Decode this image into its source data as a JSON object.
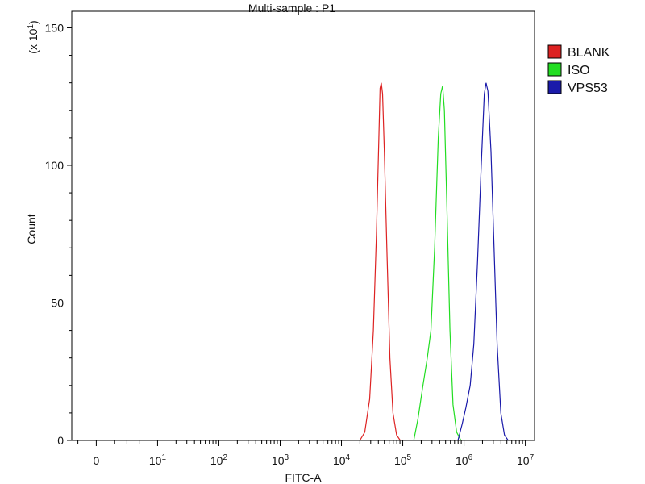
{
  "chart_data": {
    "type": "line",
    "title": "Multi-sample : P1",
    "xlabel": "FITC-A",
    "ylabel": "Count",
    "y_multiplier_label": {
      "base": "(x 10",
      "exp": "1",
      "close": ")"
    },
    "xscale": "biexponential (log above 10^1)",
    "xlim_decades": [
      -0.4,
      7.15
    ],
    "ylim": [
      0,
      15.6
    ],
    "y_ticks": [
      0,
      50,
      100,
      150
    ],
    "y_tick_values": [
      0,
      5,
      10,
      15
    ],
    "x_ticks": [
      {
        "value": 0,
        "base": "0",
        "exp": ""
      },
      {
        "value": 1,
        "base": "10",
        "exp": "1"
      },
      {
        "value": 2,
        "base": "10",
        "exp": "2"
      },
      {
        "value": 3,
        "base": "10",
        "exp": "3"
      },
      {
        "value": 4,
        "base": "10",
        "exp": "4"
      },
      {
        "value": 5,
        "base": "10",
        "exp": "5"
      },
      {
        "value": 6,
        "base": "10",
        "exp": "6"
      },
      {
        "value": 7,
        "base": "10",
        "exp": "7"
      }
    ],
    "legend_position": "right",
    "grid": false,
    "series": [
      {
        "name": "BLANK",
        "color": "#dd2222",
        "points": [
          [
            4.3,
            0
          ],
          [
            4.38,
            0.3
          ],
          [
            4.46,
            1.5
          ],
          [
            4.52,
            4
          ],
          [
            4.57,
            7.5
          ],
          [
            4.61,
            11.0
          ],
          [
            4.63,
            12.8
          ],
          [
            4.65,
            13.0
          ],
          [
            4.67,
            12.6
          ],
          [
            4.7,
            10.5
          ],
          [
            4.74,
            7.0
          ],
          [
            4.79,
            3.0
          ],
          [
            4.84,
            1.0
          ],
          [
            4.9,
            0.2
          ],
          [
            4.96,
            0
          ]
        ]
      },
      {
        "name": "ISO",
        "color": "#22dd22",
        "points": [
          [
            5.18,
            0
          ],
          [
            5.25,
            0.8
          ],
          [
            5.33,
            2.0
          ],
          [
            5.4,
            3.0
          ],
          [
            5.46,
            4.0
          ],
          [
            5.52,
            7.0
          ],
          [
            5.58,
            11.0
          ],
          [
            5.62,
            12.6
          ],
          [
            5.65,
            12.9
          ],
          [
            5.68,
            12.0
          ],
          [
            5.72,
            8.5
          ],
          [
            5.77,
            4.0
          ],
          [
            5.82,
            1.3
          ],
          [
            5.88,
            0.3
          ],
          [
            5.95,
            0
          ]
        ]
      },
      {
        "name": "VPS53",
        "color": "#1a1aaa",
        "points": [
          [
            5.9,
            0
          ],
          [
            5.97,
            0.6
          ],
          [
            6.03,
            1.2
          ],
          [
            6.1,
            2.0
          ],
          [
            6.16,
            3.5
          ],
          [
            6.22,
            6.5
          ],
          [
            6.28,
            10.0
          ],
          [
            6.33,
            12.6
          ],
          [
            6.36,
            13.0
          ],
          [
            6.39,
            12.7
          ],
          [
            6.44,
            10.5
          ],
          [
            6.49,
            7.0
          ],
          [
            6.54,
            3.5
          ],
          [
            6.6,
            1.0
          ],
          [
            6.66,
            0.2
          ],
          [
            6.72,
            0
          ]
        ]
      }
    ]
  }
}
